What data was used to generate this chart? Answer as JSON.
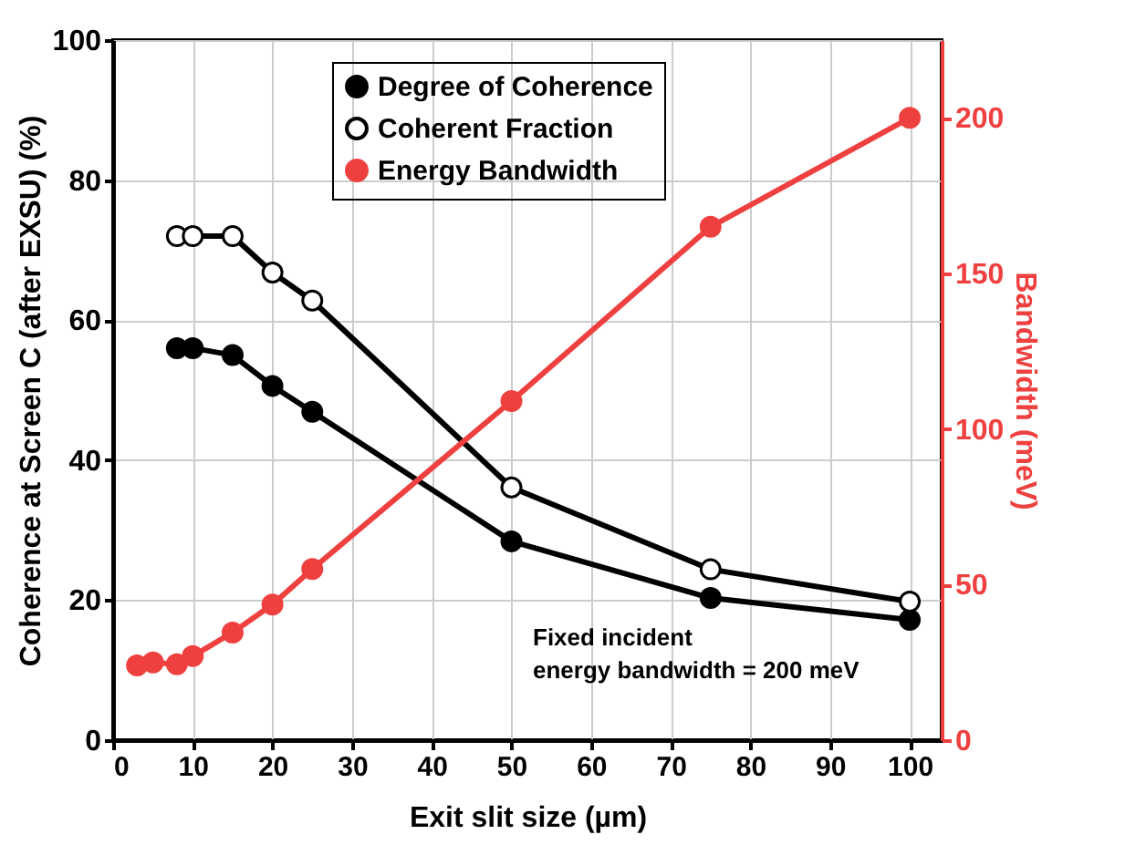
{
  "chart_data": {
    "type": "line",
    "xlabel": "Exit slit size (µm)",
    "ylabel": "Coherence at Screen C (after EXSU) (%)",
    "y2label": "Bandwidth (meV)",
    "xlim": [
      0,
      104
    ],
    "xticks": [
      0,
      10,
      20,
      30,
      40,
      50,
      60,
      70,
      80,
      90,
      100
    ],
    "ylim": [
      0,
      100
    ],
    "yticks": [
      0,
      20,
      40,
      60,
      80,
      100
    ],
    "y2lim": [
      0,
      225
    ],
    "y2ticks": [
      0,
      50,
      100,
      150,
      200
    ],
    "grid": true,
    "legend": "top",
    "marker": "circle",
    "line_style": "solid",
    "annotations": [
      "Fixed incident\nenergy bandwidth = 200 meV"
    ],
    "series": [
      {
        "name": "Degree of Coherence",
        "color": "#000000",
        "x": [
          8,
          10,
          15,
          20,
          25,
          50,
          75,
          100
        ],
        "values": [
          56,
          56,
          55,
          50.6,
          46.9,
          28.4,
          20.3,
          17.2
        ]
      },
      {
        "name": "Coherent Fraction",
        "color": "#000000",
        "x": [
          8,
          10,
          15,
          20,
          25,
          50,
          75,
          100
        ],
        "values": [
          72,
          72,
          72,
          66.8,
          62.8,
          36.1,
          24.4,
          19.8
        ]
      },
      {
        "name": "Energy Bandwidth",
        "color": "#ef4040",
        "axis": "y2",
        "x": [
          3,
          5,
          8,
          10,
          15,
          20,
          25,
          50,
          75,
          100
        ],
        "values": [
          24,
          25,
          24.4,
          27,
          34.6,
          43.6,
          55,
          109,
          165,
          200
        ]
      }
    ]
  }
}
